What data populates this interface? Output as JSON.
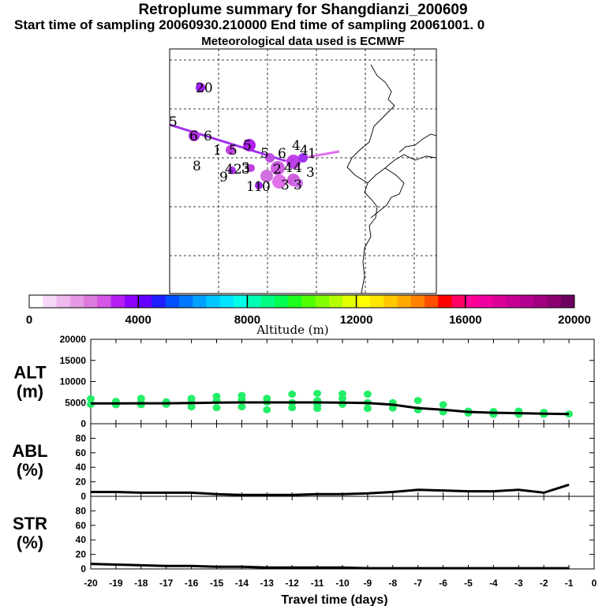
{
  "header": {
    "title": "Retroplume summary for Shangdianzi_200609",
    "subtitle": "Start time of sampling 20060930.210000     End time of sampling 20061001.     0",
    "met": "Meteorological data used is ECMWF"
  },
  "colorbar": {
    "label": "Altitude (m)",
    "ticks": [
      "0",
      "4000",
      "8000",
      "12000",
      "16000",
      "20000"
    ],
    "colors": [
      "#ffffff",
      "#f7d8f7",
      "#efb8ef",
      "#e69ae6",
      "#dd7add",
      "#d455e6",
      "#b41ef0",
      "#8c00ff",
      "#6400ff",
      "#1e1eff",
      "#0050ff",
      "#0078ff",
      "#00a0ff",
      "#00c8ff",
      "#00e6ff",
      "#00ffe6",
      "#00ffb4",
      "#00ff82",
      "#00ff50",
      "#1eff1e",
      "#50ff00",
      "#82ff00",
      "#b4ff00",
      "#e6ff00",
      "#ffff00",
      "#ffe600",
      "#ffc800",
      "#ffaa00",
      "#ff8200",
      "#ff5000",
      "#ff0000",
      "#ff0064",
      "#ff0096",
      "#f000a0",
      "#dc0096",
      "#c80096",
      "#b40090",
      "#a00080",
      "#8c0070",
      "#6e0060"
    ]
  },
  "map": {
    "labels": [
      "20",
      "5",
      "6",
      "6",
      "1",
      "5",
      "5",
      "5",
      "6",
      "4",
      "4",
      "1",
      "8",
      "4",
      "2",
      "3",
      "2",
      "4",
      "4",
      "3",
      "9",
      "3",
      "1",
      "1",
      "0",
      "3",
      "3"
    ]
  },
  "chart_data": [
    {
      "type": "line",
      "name": "alt",
      "ylabel": "ALT (m)",
      "ylabel_lines": [
        "ALT",
        "(m)"
      ],
      "ylim": [
        0,
        20000
      ],
      "yticks": [
        "0",
        "5000",
        "10000",
        "15000",
        "20000"
      ],
      "x": [
        -20,
        -19,
        -18,
        -17,
        -16,
        -15,
        -14,
        -13,
        -12,
        -11,
        -10,
        -9,
        -8,
        -7,
        -6,
        -5,
        -4,
        -3,
        -2,
        -1
      ],
      "values": [
        4800,
        4800,
        4850,
        4850,
        4900,
        5000,
        5050,
        5050,
        5050,
        5050,
        5000,
        4900,
        4500,
        3700,
        3300,
        2800,
        2600,
        2500,
        2400,
        2300
      ],
      "scatter": {
        "color": "#22ee66",
        "points": [
          [
            -20,
            5900
          ],
          [
            -20,
            4600
          ],
          [
            -19,
            5300
          ],
          [
            -19,
            4500
          ],
          [
            -18,
            6000
          ],
          [
            -18,
            5000
          ],
          [
            -18,
            4500
          ],
          [
            -17,
            5200
          ],
          [
            -17,
            4600
          ],
          [
            -16,
            6000
          ],
          [
            -16,
            5000
          ],
          [
            -16,
            4000
          ],
          [
            -15,
            6500
          ],
          [
            -15,
            5500
          ],
          [
            -15,
            3800
          ],
          [
            -14,
            6700
          ],
          [
            -14,
            5800
          ],
          [
            -14,
            4000
          ],
          [
            -13,
            6000
          ],
          [
            -13,
            5100
          ],
          [
            -13,
            3300
          ],
          [
            -12,
            7000
          ],
          [
            -12,
            5000
          ],
          [
            -12,
            3800
          ],
          [
            -11,
            7200
          ],
          [
            -11,
            5500
          ],
          [
            -11,
            4400
          ],
          [
            -11,
            3600
          ],
          [
            -10,
            7100
          ],
          [
            -10,
            6000
          ],
          [
            -10,
            4600
          ],
          [
            -9,
            7000
          ],
          [
            -9,
            5000
          ],
          [
            -9,
            3600
          ],
          [
            -8,
            5000
          ],
          [
            -8,
            3700
          ],
          [
            -7,
            5500
          ],
          [
            -7,
            3300
          ],
          [
            -6,
            4500
          ],
          [
            -6,
            2800
          ],
          [
            -5,
            3000
          ],
          [
            -5,
            2500
          ],
          [
            -4,
            2900
          ],
          [
            -4,
            2200
          ],
          [
            -3,
            3000
          ],
          [
            -3,
            2200
          ],
          [
            -2,
            2700
          ],
          [
            -2,
            2200
          ],
          [
            -1,
            2300
          ]
        ]
      }
    },
    {
      "type": "line",
      "name": "abl",
      "ylabel": "ABL (%)",
      "ylabel_lines": [
        "ABL",
        "(%)"
      ],
      "ylim": [
        0,
        100
      ],
      "yticks": [
        "0",
        "20",
        "40",
        "60",
        "80"
      ],
      "x": [
        -20,
        -19,
        -18,
        -17,
        -16,
        -15,
        -14,
        -13,
        -12,
        -11,
        -10,
        -9,
        -8,
        -7,
        -6,
        -5,
        -4,
        -3,
        -2,
        -1
      ],
      "values": [
        6,
        6,
        5,
        5,
        5,
        3,
        2,
        2,
        2,
        3,
        3,
        4,
        6,
        9,
        8,
        7,
        7,
        9,
        5,
        16
      ]
    },
    {
      "type": "line",
      "name": "str",
      "ylabel": "STR (%)",
      "ylabel_lines": [
        "STR",
        "(%)"
      ],
      "ylim": [
        0,
        100
      ],
      "yticks": [
        "0",
        "20",
        "40",
        "60",
        "80"
      ],
      "xlabel": "Travel time (days)",
      "xticks": [
        "-20",
        "-19",
        "-18",
        "-17",
        "-16",
        "-15",
        "-14",
        "-13",
        "-12",
        "-11",
        "-10",
        "-9",
        "-8",
        "-7",
        "-6",
        "-5",
        "-4",
        "-3",
        "-2",
        "-1",
        "0"
      ],
      "x": [
        -20,
        -19,
        -18,
        -17,
        -16,
        -15,
        -14,
        -13,
        -12,
        -11,
        -10,
        -9,
        -8,
        -7,
        -6,
        -5,
        -4,
        -3,
        -2,
        -1
      ],
      "values": [
        7,
        6,
        5,
        4,
        4,
        3,
        3,
        2,
        2,
        2,
        2,
        1,
        1,
        1,
        1,
        1,
        1,
        1,
        1,
        1
      ]
    }
  ]
}
